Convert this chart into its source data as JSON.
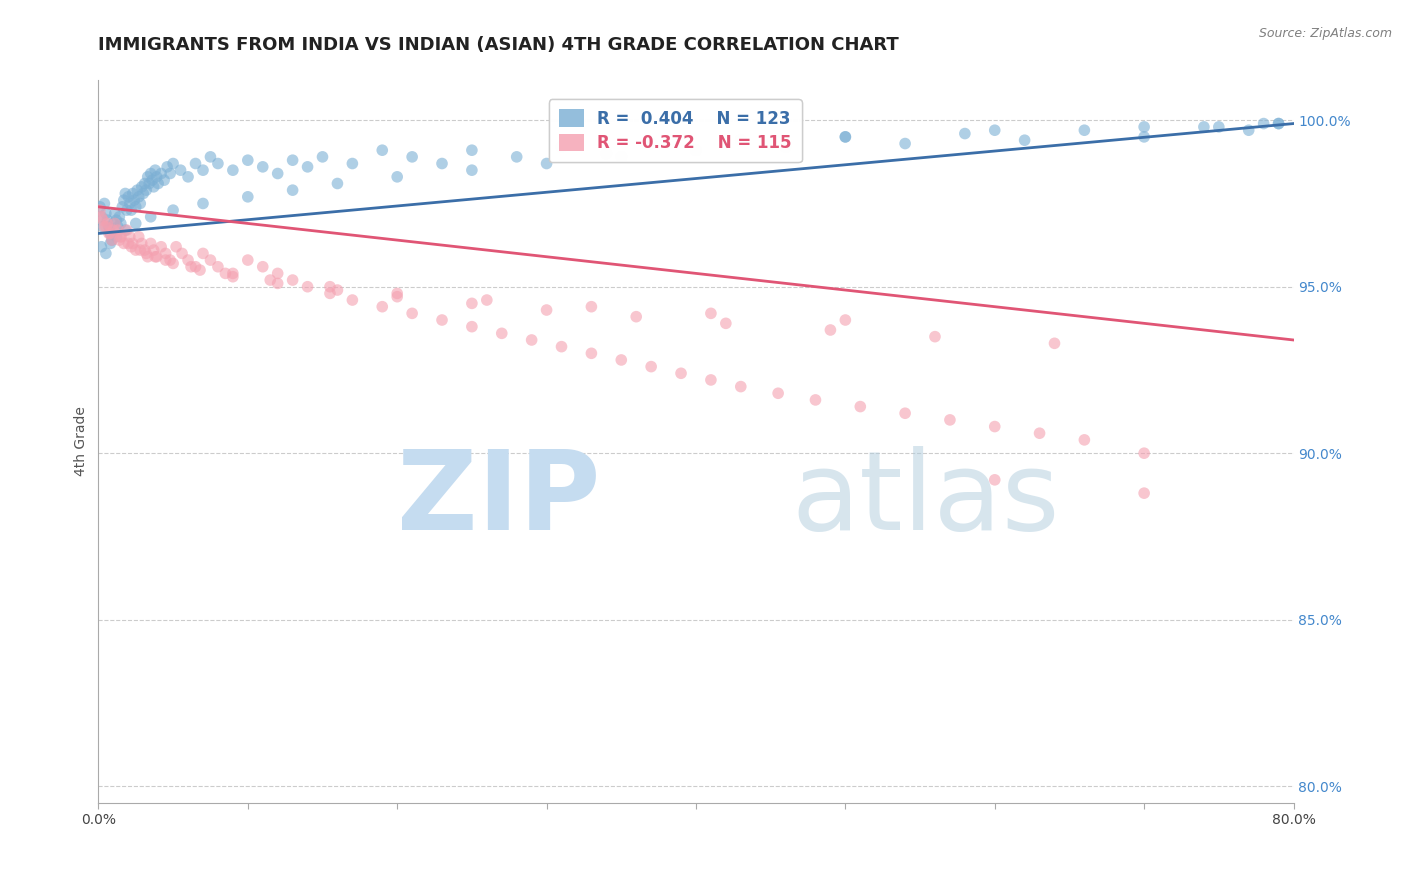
{
  "title": "IMMIGRANTS FROM INDIA VS INDIAN (ASIAN) 4TH GRADE CORRELATION CHART",
  "source": "Source: ZipAtlas.com",
  "ylabel": "4th Grade",
  "ytick_labels": [
    "100.0%",
    "95.0%",
    "90.0%",
    "85.0%",
    "80.0%"
  ],
  "ytick_values": [
    1.0,
    0.95,
    0.9,
    0.85,
    0.8
  ],
  "xlim": [
    0.0,
    0.8
  ],
  "ylim": [
    0.795,
    1.012
  ],
  "blue_color": "#7BAFD4",
  "pink_color": "#F4A0B0",
  "blue_line_color": "#3B6EA8",
  "pink_line_color": "#E05575",
  "blue_scatter_alpha": 0.6,
  "pink_scatter_alpha": 0.6,
  "marker_size": 70,
  "right_tick_color": "#4488CC",
  "grid_color": "#cccccc",
  "axis_color": "#aaaaaa",
  "title_fontsize": 13,
  "label_fontsize": 10,
  "tick_fontsize": 10,
  "background_color": "#ffffff",
  "blue_scatter_x": [
    0.001,
    0.002,
    0.003,
    0.004,
    0.005,
    0.006,
    0.007,
    0.008,
    0.009,
    0.01,
    0.011,
    0.012,
    0.013,
    0.014,
    0.015,
    0.016,
    0.017,
    0.018,
    0.019,
    0.02,
    0.021,
    0.022,
    0.023,
    0.024,
    0.025,
    0.026,
    0.027,
    0.028,
    0.029,
    0.03,
    0.031,
    0.032,
    0.033,
    0.034,
    0.035,
    0.036,
    0.037,
    0.038,
    0.039,
    0.04,
    0.042,
    0.044,
    0.046,
    0.048,
    0.05,
    0.055,
    0.06,
    0.065,
    0.07,
    0.075,
    0.08,
    0.09,
    0.1,
    0.11,
    0.12,
    0.13,
    0.14,
    0.15,
    0.17,
    0.19,
    0.21,
    0.23,
    0.25,
    0.28,
    0.31,
    0.34,
    0.37,
    0.4,
    0.43,
    0.46,
    0.5,
    0.54,
    0.58,
    0.62,
    0.66,
    0.7,
    0.74,
    0.77,
    0.79,
    0.002,
    0.005,
    0.008,
    0.012,
    0.018,
    0.025,
    0.035,
    0.05,
    0.07,
    0.1,
    0.13,
    0.16,
    0.2,
    0.25,
    0.3,
    0.35,
    0.4,
    0.45,
    0.5,
    0.6,
    0.7,
    0.75,
    0.78,
    0.79
  ],
  "blue_scatter_y": [
    0.974,
    0.971,
    0.968,
    0.975,
    0.972,
    0.97,
    0.968,
    0.966,
    0.964,
    0.969,
    0.972,
    0.97,
    0.968,
    0.971,
    0.969,
    0.974,
    0.976,
    0.978,
    0.973,
    0.977,
    0.975,
    0.973,
    0.978,
    0.976,
    0.974,
    0.979,
    0.977,
    0.975,
    0.98,
    0.978,
    0.981,
    0.979,
    0.983,
    0.981,
    0.984,
    0.982,
    0.98,
    0.985,
    0.983,
    0.981,
    0.984,
    0.982,
    0.986,
    0.984,
    0.987,
    0.985,
    0.983,
    0.987,
    0.985,
    0.989,
    0.987,
    0.985,
    0.988,
    0.986,
    0.984,
    0.988,
    0.986,
    0.989,
    0.987,
    0.991,
    0.989,
    0.987,
    0.991,
    0.989,
    0.992,
    0.99,
    0.993,
    0.991,
    0.994,
    0.992,
    0.995,
    0.993,
    0.996,
    0.994,
    0.997,
    0.995,
    0.998,
    0.997,
    0.999,
    0.962,
    0.96,
    0.963,
    0.965,
    0.967,
    0.969,
    0.971,
    0.973,
    0.975,
    0.977,
    0.979,
    0.981,
    0.983,
    0.985,
    0.987,
    0.989,
    0.991,
    0.993,
    0.995,
    0.997,
    0.998,
    0.998,
    0.999,
    0.999
  ],
  "pink_scatter_x": [
    0.001,
    0.003,
    0.005,
    0.007,
    0.009,
    0.011,
    0.013,
    0.015,
    0.017,
    0.019,
    0.021,
    0.023,
    0.025,
    0.027,
    0.029,
    0.031,
    0.033,
    0.035,
    0.037,
    0.039,
    0.042,
    0.045,
    0.048,
    0.052,
    0.056,
    0.06,
    0.065,
    0.07,
    0.075,
    0.08,
    0.09,
    0.1,
    0.11,
    0.12,
    0.13,
    0.14,
    0.155,
    0.17,
    0.19,
    0.21,
    0.23,
    0.25,
    0.27,
    0.29,
    0.31,
    0.33,
    0.35,
    0.37,
    0.39,
    0.41,
    0.43,
    0.455,
    0.48,
    0.51,
    0.54,
    0.57,
    0.6,
    0.63,
    0.66,
    0.7,
    0.002,
    0.006,
    0.01,
    0.015,
    0.02,
    0.028,
    0.038,
    0.05,
    0.068,
    0.09,
    0.12,
    0.16,
    0.2,
    0.25,
    0.3,
    0.36,
    0.42,
    0.49,
    0.56,
    0.64,
    0.004,
    0.008,
    0.014,
    0.022,
    0.032,
    0.045,
    0.062,
    0.085,
    0.115,
    0.155,
    0.2,
    0.26,
    0.33,
    0.41,
    0.5,
    0.6,
    0.7
  ],
  "pink_scatter_y": [
    0.973,
    0.97,
    0.968,
    0.966,
    0.964,
    0.969,
    0.967,
    0.965,
    0.963,
    0.967,
    0.965,
    0.963,
    0.961,
    0.965,
    0.963,
    0.961,
    0.959,
    0.963,
    0.961,
    0.959,
    0.962,
    0.96,
    0.958,
    0.962,
    0.96,
    0.958,
    0.956,
    0.96,
    0.958,
    0.956,
    0.954,
    0.958,
    0.956,
    0.954,
    0.952,
    0.95,
    0.948,
    0.946,
    0.944,
    0.942,
    0.94,
    0.938,
    0.936,
    0.934,
    0.932,
    0.93,
    0.928,
    0.926,
    0.924,
    0.922,
    0.92,
    0.918,
    0.916,
    0.914,
    0.912,
    0.91,
    0.908,
    0.906,
    0.904,
    0.9,
    0.971,
    0.969,
    0.967,
    0.965,
    0.963,
    0.961,
    0.959,
    0.957,
    0.955,
    0.953,
    0.951,
    0.949,
    0.947,
    0.945,
    0.943,
    0.941,
    0.939,
    0.937,
    0.935,
    0.933,
    0.968,
    0.966,
    0.964,
    0.962,
    0.96,
    0.958,
    0.956,
    0.954,
    0.952,
    0.95,
    0.948,
    0.946,
    0.944,
    0.942,
    0.94,
    0.892,
    0.888
  ],
  "blue_trend_x": [
    0.0,
    0.8
  ],
  "blue_trend_y": [
    0.966,
    0.999
  ],
  "pink_trend_x": [
    0.0,
    0.8
  ],
  "pink_trend_y": [
    0.974,
    0.934
  ]
}
